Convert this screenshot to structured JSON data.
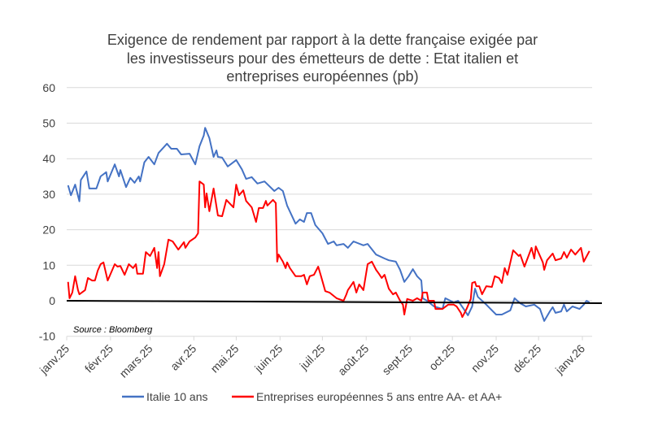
{
  "chart_data": {
    "type": "line",
    "title_lines": [
      "Exigence de rendement par rapport à la dette française exigée par",
      "les investisseurs pour des émetteurs de dette : Etat italien et",
      "entreprises européennes (pb)"
    ],
    "xlabel": "",
    "ylabel": "",
    "ylim": [
      -10,
      60
    ],
    "y_ticks": [
      "60",
      "50",
      "40",
      "30",
      "20",
      "10",
      "0",
      "-10"
    ],
    "x_tick_labels": [
      "janv.25",
      "févr.25",
      "mars.25",
      "avr.25",
      "mai.25",
      "juin.25",
      "juil.25",
      "août.25",
      "sept.25",
      "oct.25",
      "nov.25",
      "déc.25",
      "janv.26"
    ],
    "x_tick_dates": [
      "2025-01-01",
      "2025-02-01",
      "2025-03-01",
      "2025-04-01",
      "2025-05-01",
      "2025-06-01",
      "2025-07-01",
      "2025-08-01",
      "2025-09-01",
      "2025-10-01",
      "2025-11-01",
      "2025-12-01",
      "2026-01-01"
    ],
    "grid": true,
    "legend_position": "bottom",
    "source": "Source : Bloomberg",
    "zero_line_color": "#000000",
    "series": [
      {
        "name": "Italie 10 ans",
        "color": "#4472C4",
        "points": [
          [
            "2025-01-02",
            32.5
          ],
          [
            "2025-01-04",
            29.7
          ],
          [
            "2025-01-07",
            32.7
          ],
          [
            "2025-01-10",
            28
          ],
          [
            "2025-01-11",
            34
          ],
          [
            "2025-01-15",
            36.4
          ],
          [
            "2025-01-17",
            31.6
          ],
          [
            "2025-01-22",
            31.6
          ],
          [
            "2025-01-25",
            35
          ],
          [
            "2025-01-29",
            36.2
          ],
          [
            "2025-01-30",
            33.6
          ],
          [
            "2025-02-04",
            38.4
          ],
          [
            "2025-02-07",
            35
          ],
          [
            "2025-02-08",
            36.8
          ],
          [
            "2025-02-12",
            32
          ],
          [
            "2025-02-15",
            34.6
          ],
          [
            "2025-02-18",
            33.2
          ],
          [
            "2025-02-21",
            35
          ],
          [
            "2025-02-22",
            33.6
          ],
          [
            "2025-02-25",
            39
          ],
          [
            "2025-02-28",
            40.5
          ],
          [
            "2025-03-04",
            38.4
          ],
          [
            "2025-03-07",
            41.6
          ],
          [
            "2025-03-13",
            44.2
          ],
          [
            "2025-03-16",
            42.8
          ],
          [
            "2025-03-20",
            42.8
          ],
          [
            "2025-03-23",
            41.2
          ],
          [
            "2025-03-29",
            41.4
          ],
          [
            "2025-04-02",
            38.4
          ],
          [
            "2025-04-05",
            43.5
          ],
          [
            "2025-04-08",
            46.5
          ],
          [
            "2025-04-09",
            48.7
          ],
          [
            "2025-04-12",
            45.8
          ],
          [
            "2025-04-15",
            40.5
          ],
          [
            "2025-04-17",
            42.3
          ],
          [
            "2025-04-18",
            40.5
          ],
          [
            "2025-04-21",
            40.3
          ],
          [
            "2025-04-25",
            37.8
          ],
          [
            "2025-05-01",
            39.6
          ],
          [
            "2025-05-05",
            37
          ],
          [
            "2025-05-08",
            34.3
          ],
          [
            "2025-05-12",
            34.8
          ],
          [
            "2025-05-16",
            33
          ],
          [
            "2025-05-21",
            33.6
          ],
          [
            "2025-05-28",
            30.9
          ],
          [
            "2025-05-31",
            31.8
          ],
          [
            "2025-06-03",
            30.9
          ],
          [
            "2025-06-06",
            26.8
          ],
          [
            "2025-06-12",
            21.7
          ],
          [
            "2025-06-15",
            22.9
          ],
          [
            "2025-06-18",
            22.2
          ],
          [
            "2025-06-20",
            24.7
          ],
          [
            "2025-06-23",
            24.7
          ],
          [
            "2025-06-26",
            21.3
          ],
          [
            "2025-07-01",
            19
          ],
          [
            "2025-07-05",
            16
          ],
          [
            "2025-07-09",
            16.7
          ],
          [
            "2025-07-11",
            15.6
          ],
          [
            "2025-07-16",
            16
          ],
          [
            "2025-07-19",
            14.9
          ],
          [
            "2025-07-23",
            16.7
          ],
          [
            "2025-07-30",
            15.6
          ],
          [
            "2025-08-02",
            16
          ],
          [
            "2025-08-08",
            13
          ],
          [
            "2025-08-14",
            11.9
          ],
          [
            "2025-08-17",
            11.4
          ],
          [
            "2025-08-22",
            11
          ],
          [
            "2025-08-25",
            8.7
          ],
          [
            "2025-08-28",
            5.3
          ],
          [
            "2025-08-31",
            6.9
          ],
          [
            "2025-09-03",
            8.9
          ],
          [
            "2025-09-06",
            6.9
          ],
          [
            "2025-09-09",
            5.7
          ],
          [
            "2025-09-10",
            0.7
          ],
          [
            "2025-09-13",
            0
          ],
          [
            "2025-09-18",
            -1.6
          ],
          [
            "2025-09-24",
            -2.3
          ],
          [
            "2025-09-26",
            0.7
          ],
          [
            "2025-10-02",
            -0.5
          ],
          [
            "2025-10-05",
            0
          ],
          [
            "2025-10-09",
            -2.3
          ],
          [
            "2025-10-12",
            -4.1
          ],
          [
            "2025-10-15",
            -1.6
          ],
          [
            "2025-10-17",
            3.4
          ],
          [
            "2025-10-19",
            1.1
          ],
          [
            "2025-10-25",
            -1.1
          ],
          [
            "2025-10-28",
            -2.3
          ],
          [
            "2025-11-01",
            -3.9
          ],
          [
            "2025-11-05",
            -3.9
          ],
          [
            "2025-11-11",
            -2.7
          ],
          [
            "2025-11-14",
            0.7
          ],
          [
            "2025-11-18",
            -0.7
          ],
          [
            "2025-11-22",
            -1.6
          ],
          [
            "2025-11-28",
            -1.1
          ],
          [
            "2025-12-02",
            -2.3
          ],
          [
            "2025-12-05",
            -5.7
          ],
          [
            "2025-12-09",
            -3
          ],
          [
            "2025-12-11",
            -1.8
          ],
          [
            "2025-12-13",
            -3.4
          ],
          [
            "2025-12-17",
            -3
          ],
          [
            "2025-12-19",
            -1.1
          ],
          [
            "2025-12-21",
            -3
          ],
          [
            "2025-12-25",
            -1.6
          ],
          [
            "2025-12-30",
            -2.3
          ],
          [
            "2026-01-02",
            -1.1
          ],
          [
            "2026-01-04",
            0
          ],
          [
            "2026-01-06",
            -0.5
          ]
        ]
      },
      {
        "name": "Entreprises européennes 5 ans entre AA- et AA+",
        "color": "#FF0000",
        "points": [
          [
            "2025-01-02",
            5.3
          ],
          [
            "2025-01-03",
            0.7
          ],
          [
            "2025-01-05",
            2.3
          ],
          [
            "2025-01-07",
            6.9
          ],
          [
            "2025-01-09",
            3
          ],
          [
            "2025-01-10",
            1.8
          ],
          [
            "2025-01-14",
            3
          ],
          [
            "2025-01-16",
            6.4
          ],
          [
            "2025-01-19",
            5.7
          ],
          [
            "2025-01-21",
            5.7
          ],
          [
            "2025-01-23",
            8.5
          ],
          [
            "2025-01-25",
            10.3
          ],
          [
            "2025-01-27",
            10.8
          ],
          [
            "2025-01-30",
            5.7
          ],
          [
            "2025-02-04",
            10.3
          ],
          [
            "2025-02-06",
            9.6
          ],
          [
            "2025-02-08",
            9.8
          ],
          [
            "2025-02-11",
            7.3
          ],
          [
            "2025-02-14",
            10.3
          ],
          [
            "2025-02-17",
            9.2
          ],
          [
            "2025-02-19",
            10.3
          ],
          [
            "2025-02-20",
            7.6
          ],
          [
            "2025-02-24",
            7.6
          ],
          [
            "2025-02-26",
            13.7
          ],
          [
            "2025-03-01",
            12.6
          ],
          [
            "2025-03-04",
            14.9
          ],
          [
            "2025-03-06",
            9.2
          ],
          [
            "2025-03-07",
            13.7
          ],
          [
            "2025-03-08",
            6.9
          ],
          [
            "2025-03-11",
            10.3
          ],
          [
            "2025-03-14",
            17.2
          ],
          [
            "2025-03-17",
            16.7
          ],
          [
            "2025-03-21",
            14.4
          ],
          [
            "2025-03-25",
            16.5
          ],
          [
            "2025-03-26",
            14.9
          ],
          [
            "2025-03-29",
            16.7
          ],
          [
            "2025-04-02",
            17.8
          ],
          [
            "2025-04-04",
            19
          ],
          [
            "2025-04-05",
            33.6
          ],
          [
            "2025-04-08",
            32.7
          ],
          [
            "2025-04-09",
            26.3
          ],
          [
            "2025-04-10",
            30.2
          ],
          [
            "2025-04-12",
            25.2
          ],
          [
            "2025-04-15",
            31.6
          ],
          [
            "2025-04-18",
            24
          ],
          [
            "2025-04-21",
            23.8
          ],
          [
            "2025-04-24",
            28.4
          ],
          [
            "2025-04-29",
            26.3
          ],
          [
            "2025-05-01",
            32.7
          ],
          [
            "2025-05-03",
            29.7
          ],
          [
            "2025-05-06",
            31.1
          ],
          [
            "2025-05-08",
            28.1
          ],
          [
            "2025-05-12",
            26.3
          ],
          [
            "2025-05-15",
            22.2
          ],
          [
            "2025-05-17",
            26.1
          ],
          [
            "2025-05-20",
            26.1
          ],
          [
            "2025-05-22",
            28.1
          ],
          [
            "2025-05-23",
            26.8
          ],
          [
            "2025-05-27",
            28.4
          ],
          [
            "2025-05-29",
            27.5
          ],
          [
            "2025-05-30",
            11
          ],
          [
            "2025-05-31",
            13
          ],
          [
            "2025-06-03",
            11
          ],
          [
            "2025-06-05",
            9.2
          ],
          [
            "2025-06-06",
            10.8
          ],
          [
            "2025-06-08",
            9.2
          ],
          [
            "2025-06-12",
            6.9
          ],
          [
            "2025-06-16",
            6.9
          ],
          [
            "2025-06-18",
            7.3
          ],
          [
            "2025-06-20",
            4.6
          ],
          [
            "2025-06-22",
            6.9
          ],
          [
            "2025-06-25",
            7.3
          ],
          [
            "2025-06-28",
            9.6
          ],
          [
            "2025-06-30",
            6.9
          ],
          [
            "2025-07-03",
            2.7
          ],
          [
            "2025-07-06",
            2.3
          ],
          [
            "2025-07-11",
            0.7
          ],
          [
            "2025-07-16",
            0
          ],
          [
            "2025-07-18",
            1.8
          ],
          [
            "2025-07-19",
            3
          ],
          [
            "2025-07-23",
            5.3
          ],
          [
            "2025-07-25",
            2.3
          ],
          [
            "2025-07-27",
            4.6
          ],
          [
            "2025-07-30",
            3
          ],
          [
            "2025-08-02",
            10.3
          ],
          [
            "2025-08-05",
            11
          ],
          [
            "2025-08-08",
            8.7
          ],
          [
            "2025-08-10",
            7.6
          ],
          [
            "2025-08-12",
            6.4
          ],
          [
            "2025-08-14",
            7.3
          ],
          [
            "2025-08-17",
            3.4
          ],
          [
            "2025-08-20",
            1.8
          ],
          [
            "2025-08-22",
            2.3
          ],
          [
            "2025-08-25",
            0
          ],
          [
            "2025-08-27",
            -1.1
          ],
          [
            "2025-08-28",
            -3.9
          ],
          [
            "2025-08-30",
            0.5
          ],
          [
            "2025-09-03",
            0
          ],
          [
            "2025-09-06",
            0.7
          ],
          [
            "2025-09-09",
            0
          ],
          [
            "2025-09-10",
            2.3
          ],
          [
            "2025-09-13",
            2.3
          ],
          [
            "2025-09-14",
            0
          ],
          [
            "2025-09-18",
            0
          ],
          [
            "2025-09-19",
            -2.3
          ],
          [
            "2025-09-24",
            -2.3
          ],
          [
            "2025-09-28",
            -1.1
          ],
          [
            "2025-10-02",
            -1.1
          ],
          [
            "2025-10-04",
            -1.6
          ],
          [
            "2025-10-07",
            -3.4
          ],
          [
            "2025-10-08",
            -4.6
          ],
          [
            "2025-10-11",
            -2.3
          ],
          [
            "2025-10-14",
            0.5
          ],
          [
            "2025-10-15",
            5
          ],
          [
            "2025-10-17",
            5.3
          ],
          [
            "2025-10-18",
            4.1
          ],
          [
            "2025-10-20",
            4.1
          ],
          [
            "2025-10-22",
            1.8
          ],
          [
            "2025-10-25",
            4.1
          ],
          [
            "2025-10-29",
            3.9
          ],
          [
            "2025-10-31",
            6.9
          ],
          [
            "2025-11-03",
            6.4
          ],
          [
            "2025-11-05",
            5
          ],
          [
            "2025-11-07",
            9.2
          ],
          [
            "2025-11-09",
            7.3
          ],
          [
            "2025-11-13",
            14.2
          ],
          [
            "2025-11-17",
            12.6
          ],
          [
            "2025-11-18",
            13
          ],
          [
            "2025-11-21",
            9.6
          ],
          [
            "2025-11-26",
            14.9
          ],
          [
            "2025-11-28",
            11.9
          ],
          [
            "2025-11-29",
            15.3
          ],
          [
            "2025-12-04",
            10.8
          ],
          [
            "2025-12-05",
            8.7
          ],
          [
            "2025-12-07",
            11.4
          ],
          [
            "2025-12-11",
            13.3
          ],
          [
            "2025-12-13",
            11.4
          ],
          [
            "2025-12-17",
            11.9
          ],
          [
            "2025-12-19",
            13.7
          ],
          [
            "2025-12-21",
            12.1
          ],
          [
            "2025-12-24",
            14.4
          ],
          [
            "2025-12-27",
            13
          ],
          [
            "2025-12-31",
            14.9
          ],
          [
            "2026-01-02",
            11
          ],
          [
            "2026-01-06",
            14
          ]
        ]
      }
    ]
  }
}
